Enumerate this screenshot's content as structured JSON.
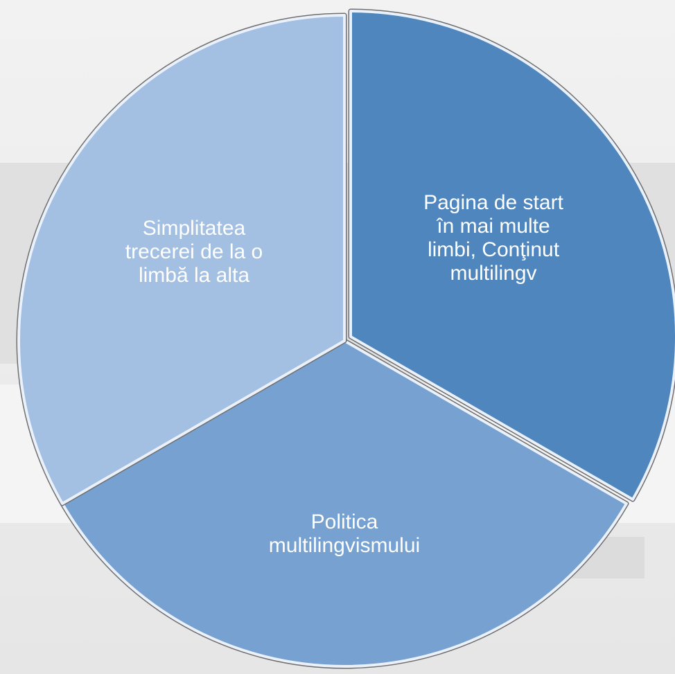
{
  "nodes": [
    {
      "lines": [
        "Pagina de start",
        "în mai multe",
        "limbi, Conţinut",
        "multilingv"
      ]
    },
    {
      "lines": [
        "Politica",
        "multilingvismului"
      ]
    },
    {
      "lines": [
        "Simplitatea",
        "trecerei de la o",
        "limbă la alta"
      ]
    }
  ]
}
